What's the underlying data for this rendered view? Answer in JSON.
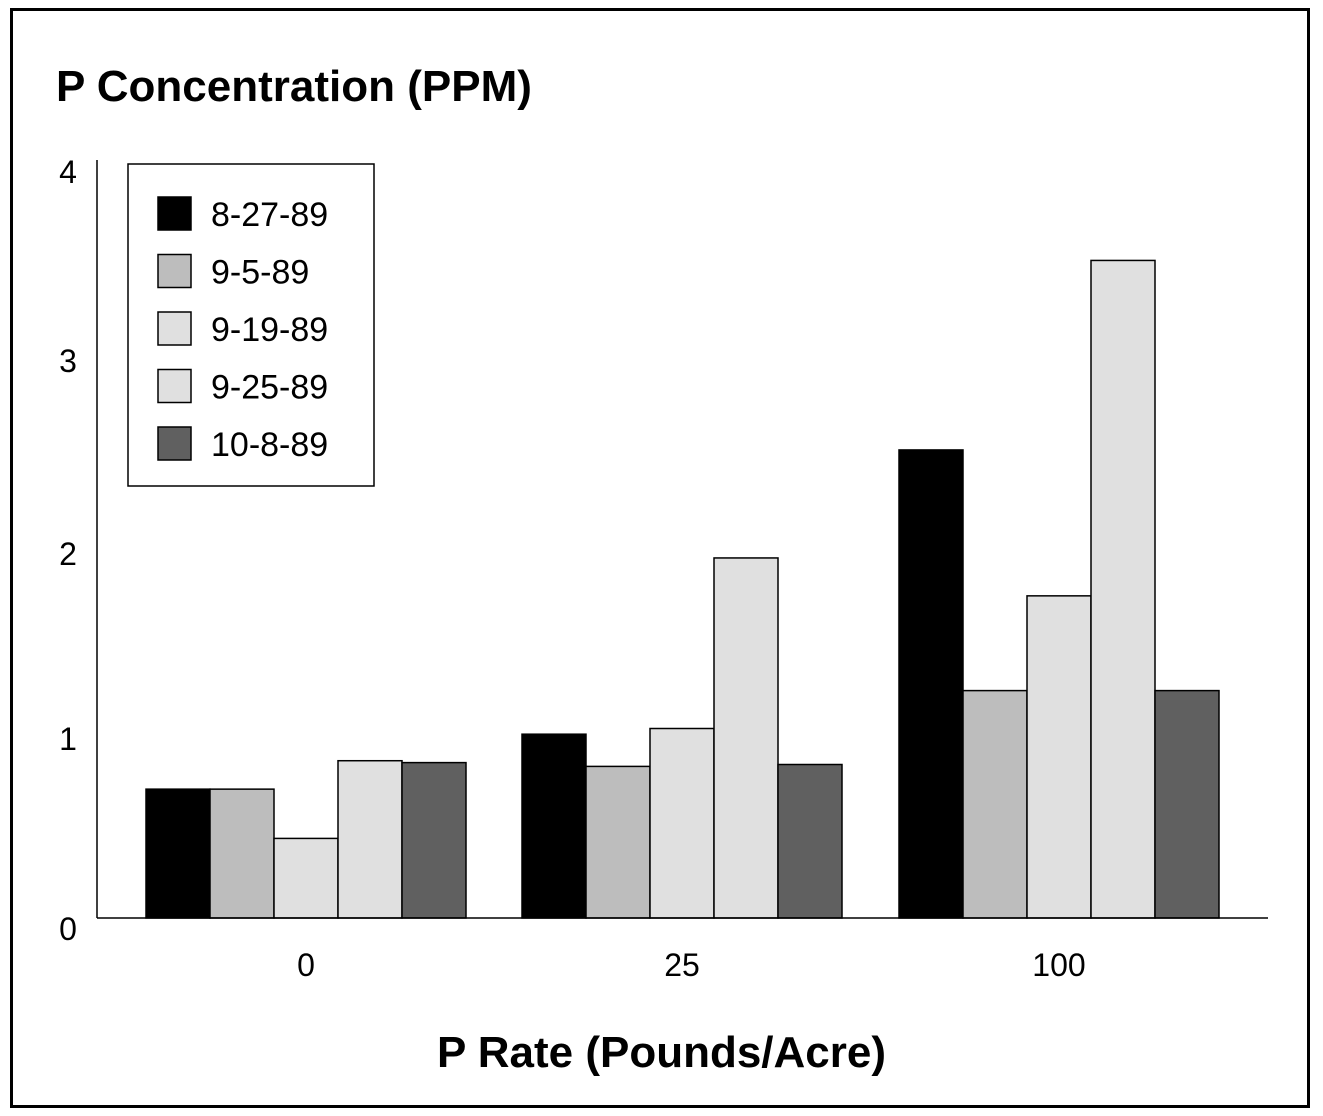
{
  "chart_data": {
    "type": "bar",
    "title": "P Concentration (PPM)",
    "xlabel": "P Rate (Pounds/Acre)",
    "ylabel": "",
    "categories": [
      "0",
      "25",
      "100"
    ],
    "ylim": [
      0,
      4
    ],
    "yticks": [
      "0",
      "1",
      "2",
      "3",
      "4"
    ],
    "grid": false,
    "legend_position": "top-left",
    "series": [
      {
        "name": "8-27-89",
        "color": "#000000",
        "values": [
          0.68,
          0.97,
          2.47
        ]
      },
      {
        "name": "9-5-89",
        "color": "#bdbdbd",
        "values": [
          0.68,
          0.8,
          1.2
        ]
      },
      {
        "name": "9-19-89",
        "color": "#e0e0e0",
        "values": [
          0.42,
          1.0,
          1.7
        ]
      },
      {
        "name": "9-25-89",
        "color": "#e0e0e0",
        "values": [
          0.83,
          1.9,
          3.47
        ]
      },
      {
        "name": "10-8-89",
        "color": "#606060",
        "values": [
          0.82,
          0.81,
          1.2
        ]
      }
    ]
  }
}
